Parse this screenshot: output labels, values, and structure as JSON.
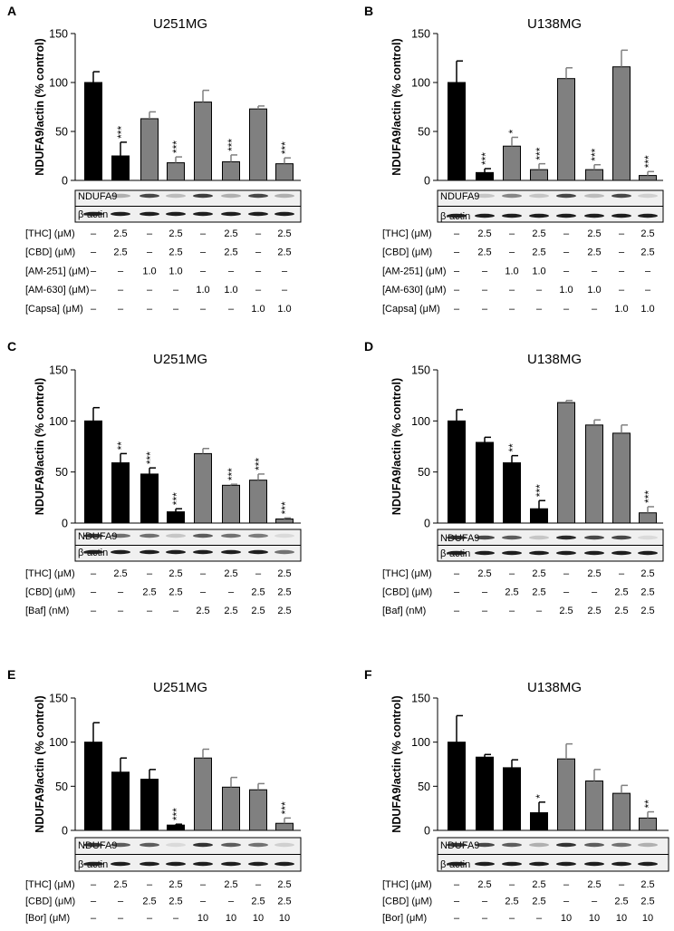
{
  "figure": {
    "colors": {
      "black_bar": "#000000",
      "gray_bar": "#808080",
      "blot_bg": "#f0f0f0",
      "band": "#1e1e1e"
    }
  },
  "chart_data": [
    {
      "panel": "A",
      "type": "bar",
      "title": "U251MG",
      "ylabel": "NDUFA9/actin (% control)",
      "ylim": [
        0,
        150
      ],
      "yticks": [
        "0",
        "50",
        "100",
        "150"
      ],
      "values": [
        100,
        25,
        63,
        18,
        80,
        19,
        73,
        17
      ],
      "errors": [
        11,
        14,
        7,
        6,
        12,
        7,
        3,
        6
      ],
      "colors": [
        "black",
        "black",
        "gray",
        "gray",
        "gray",
        "gray",
        "gray",
        "gray"
      ],
      "significance": [
        "",
        "***",
        "",
        "***",
        "",
        "***",
        "",
        "***"
      ],
      "blots": [
        "NDUFA9",
        "β-actin"
      ],
      "conditions": [
        {
          "label": "[THC] (μM)",
          "values": [
            "–",
            "2.5",
            "–",
            "2.5",
            "–",
            "2.5",
            "–",
            "2.5"
          ]
        },
        {
          "label": "[CBD] (μM)",
          "values": [
            "–",
            "2.5",
            "–",
            "2.5",
            "–",
            "2.5",
            "–",
            "2.5"
          ]
        },
        {
          "label": "[AM-251] (μM)",
          "values": [
            "–",
            "–",
            "1.0",
            "1.0",
            "–",
            "–",
            "–",
            "–"
          ]
        },
        {
          "label": "[AM-630] (μM)",
          "values": [
            "–",
            "–",
            "–",
            "–",
            "1.0",
            "1.0",
            "–",
            "–"
          ]
        },
        {
          "label": "[Capsa] (μM)",
          "values": [
            "–",
            "–",
            "–",
            "–",
            "–",
            "–",
            "1.0",
            "1.0"
          ]
        }
      ]
    },
    {
      "panel": "B",
      "type": "bar",
      "title": "U138MG",
      "ylabel": "NDUFA9/actin (% control)",
      "ylim": [
        0,
        150
      ],
      "yticks": [
        "0",
        "50",
        "100",
        "150"
      ],
      "values": [
        100,
        8,
        35,
        11,
        104,
        11,
        116,
        5
      ],
      "errors": [
        22,
        4,
        9,
        6,
        11,
        5,
        17,
        4
      ],
      "colors": [
        "black",
        "black",
        "gray",
        "gray",
        "gray",
        "gray",
        "gray",
        "gray"
      ],
      "significance": [
        "",
        "***",
        "*",
        "***",
        "",
        "***",
        "",
        "***"
      ],
      "blots": [
        "NDUFA9",
        "β-actin"
      ],
      "conditions": [
        {
          "label": "[THC] (μM)",
          "values": [
            "–",
            "2.5",
            "–",
            "2.5",
            "–",
            "2.5",
            "–",
            "2.5"
          ]
        },
        {
          "label": "[CBD] (μM)",
          "values": [
            "–",
            "2.5",
            "–",
            "2.5",
            "–",
            "2.5",
            "–",
            "2.5"
          ]
        },
        {
          "label": "[AM-251] (μM)",
          "values": [
            "–",
            "–",
            "1.0",
            "1.0",
            "–",
            "–",
            "–",
            "–"
          ]
        },
        {
          "label": "[AM-630] (μM)",
          "values": [
            "–",
            "–",
            "–",
            "–",
            "1.0",
            "1.0",
            "–",
            "–"
          ]
        },
        {
          "label": "[Capsa] (μM)",
          "values": [
            "–",
            "–",
            "–",
            "–",
            "–",
            "–",
            "1.0",
            "1.0"
          ]
        }
      ]
    },
    {
      "panel": "C",
      "type": "bar",
      "title": "U251MG",
      "ylabel": "NDUFA9/actin (% control)",
      "ylim": [
        0,
        150
      ],
      "yticks": [
        "0",
        "50",
        "100",
        "150"
      ],
      "values": [
        100,
        59,
        48,
        11,
        68,
        37,
        42,
        4
      ],
      "errors": [
        13,
        9,
        6,
        3,
        5,
        1,
        6,
        1
      ],
      "colors": [
        "black",
        "black",
        "black",
        "black",
        "gray",
        "gray",
        "gray",
        "gray"
      ],
      "significance": [
        "",
        "**",
        "***",
        "***",
        "",
        "***",
        "***",
        "***"
      ],
      "blots": [
        "NDUFA9",
        "β-actin"
      ],
      "conditions": [
        {
          "label": "[THC] (μM)",
          "values": [
            "–",
            "2.5",
            "–",
            "2.5",
            "–",
            "2.5",
            "–",
            "2.5"
          ]
        },
        {
          "label": "[CBD] (μM)",
          "values": [
            "–",
            "–",
            "2.5",
            "2.5",
            "–",
            "–",
            "2.5",
            "2.5"
          ]
        },
        {
          "label": "[Baf] (nM)",
          "values": [
            "–",
            "–",
            "–",
            "–",
            "2.5",
            "2.5",
            "2.5",
            "2.5"
          ]
        }
      ]
    },
    {
      "panel": "D",
      "type": "bar",
      "title": "U138MG",
      "ylabel": "NDUFA9/actin (% control)",
      "ylim": [
        0,
        150
      ],
      "yticks": [
        "0",
        "50",
        "100",
        "150"
      ],
      "values": [
        100,
        79,
        59,
        14,
        118,
        96,
        88,
        10
      ],
      "errors": [
        11,
        5,
        7,
        8,
        2,
        5,
        8,
        6
      ],
      "colors": [
        "black",
        "black",
        "black",
        "black",
        "gray",
        "gray",
        "gray",
        "gray"
      ],
      "significance": [
        "",
        "",
        "**",
        "***",
        "",
        "",
        "",
        "***"
      ],
      "blots": [
        "NDUFA9",
        "β-actin"
      ],
      "conditions": [
        {
          "label": "[THC] (μM)",
          "values": [
            "–",
            "2.5",
            "–",
            "2.5",
            "–",
            "2.5",
            "–",
            "2.5"
          ]
        },
        {
          "label": "[CBD] (μM)",
          "values": [
            "–",
            "–",
            "2.5",
            "2.5",
            "–",
            "–",
            "2.5",
            "2.5"
          ]
        },
        {
          "label": "[Baf] (nM)",
          "values": [
            "–",
            "–",
            "–",
            "–",
            "2.5",
            "2.5",
            "2.5",
            "2.5"
          ]
        }
      ]
    },
    {
      "panel": "E",
      "type": "bar",
      "title": "U251MG",
      "ylabel": "NDUFA9/actin (% control)",
      "ylim": [
        0,
        150
      ],
      "yticks": [
        "0",
        "50",
        "100",
        "150"
      ],
      "values": [
        100,
        66,
        58,
        6,
        82,
        49,
        46,
        8
      ],
      "errors": [
        22,
        16,
        11,
        1,
        10,
        11,
        7,
        6
      ],
      "colors": [
        "black",
        "black",
        "black",
        "black",
        "gray",
        "gray",
        "gray",
        "gray"
      ],
      "significance": [
        "",
        "",
        "",
        "***",
        "",
        "",
        "",
        "***"
      ],
      "blots": [
        "NDUFA9",
        "β-actin"
      ],
      "conditions": [
        {
          "label": "[THC] (μM)",
          "values": [
            "–",
            "2.5",
            "–",
            "2.5",
            "–",
            "2.5",
            "–",
            "2.5"
          ]
        },
        {
          "label": "[CBD] (μM)",
          "values": [
            "–",
            "–",
            "2.5",
            "2.5",
            "–",
            "–",
            "2.5",
            "2.5"
          ]
        },
        {
          "label": "[Bor] (μM)",
          "values": [
            "–",
            "–",
            "–",
            "–",
            "10",
            "10",
            "10",
            "10"
          ]
        }
      ]
    },
    {
      "panel": "F",
      "type": "bar",
      "title": "U138MG",
      "ylabel": "NDUFA9/actin (% control)",
      "ylim": [
        0,
        150
      ],
      "yticks": [
        "0",
        "50",
        "100",
        "150"
      ],
      "values": [
        100,
        83,
        71,
        20,
        81,
        56,
        42,
        14
      ],
      "errors": [
        30,
        3,
        9,
        12,
        17,
        13,
        9,
        7
      ],
      "colors": [
        "black",
        "black",
        "black",
        "black",
        "gray",
        "gray",
        "gray",
        "gray"
      ],
      "significance": [
        "",
        "",
        "",
        "*",
        "",
        "",
        "",
        "**"
      ],
      "blots": [
        "NDUFA9",
        "β-actin"
      ],
      "conditions": [
        {
          "label": "[THC] (μM)",
          "values": [
            "–",
            "2.5",
            "–",
            "2.5",
            "–",
            "2.5",
            "–",
            "2.5"
          ]
        },
        {
          "label": "[CBD] (μM)",
          "values": [
            "–",
            "–",
            "2.5",
            "2.5",
            "–",
            "–",
            "2.5",
            "2.5"
          ]
        },
        {
          "label": "[Bor] (μM)",
          "values": [
            "–",
            "–",
            "–",
            "–",
            "10",
            "10",
            "10",
            "10"
          ]
        }
      ]
    }
  ]
}
